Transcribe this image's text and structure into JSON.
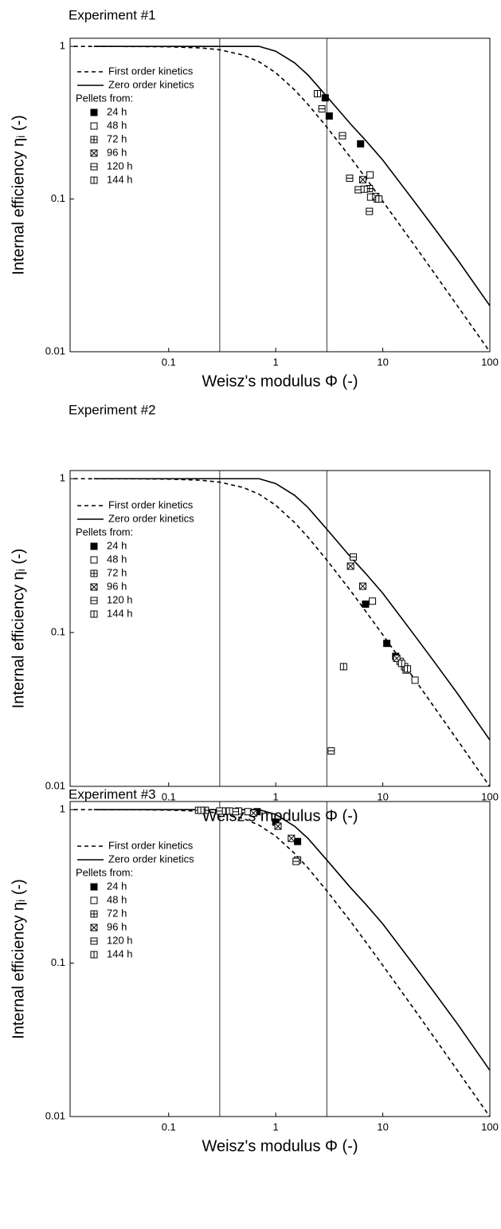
{
  "chart_data": [
    {
      "type": "scatter",
      "title": "Experiment #1",
      "xlabel": "Weisz's modulus Φ (-)",
      "ylabel": "Internal efficiency ηᵢ (-)",
      "xscale": "log",
      "yscale": "log",
      "xlim": [
        0.012,
        100
      ],
      "ylim": [
        0.01,
        1.13
      ],
      "xticks": [
        0.1,
        1,
        10,
        100
      ],
      "yticks": [
        0.01,
        0.1,
        1
      ],
      "vlines": [
        0.3,
        3
      ],
      "legend": "upper left",
      "legend_heading": "Pellets from:",
      "series": [
        {
          "name": "First order kinetics",
          "style": "dashed",
          "color": "#000000",
          "x": [
            0.013,
            0.05,
            0.1,
            0.2,
            0.3,
            0.5,
            0.7,
            1,
            1.5,
            2,
            3,
            5,
            7,
            10,
            20,
            30,
            50,
            100
          ],
          "values": [
            1.0,
            0.9985,
            0.994,
            0.977,
            0.95,
            0.876,
            0.792,
            0.672,
            0.519,
            0.417,
            0.296,
            0.187,
            0.136,
            0.0967,
            0.0492,
            0.033,
            0.0199,
            0.00997
          ]
        },
        {
          "name": "Zero order kinetics",
          "style": "solid",
          "color": "#000000",
          "x": [
            0.02,
            0.1,
            0.5,
            0.7,
            1,
            1.5,
            2,
            3,
            5,
            7,
            10,
            20,
            30,
            50,
            100
          ],
          "values": [
            1,
            1,
            1,
            1,
            0.93,
            0.78,
            0.65,
            0.47,
            0.31,
            0.24,
            0.18,
            0.095,
            0.065,
            0.04,
            0.02
          ]
        },
        {
          "name": "24 h",
          "marker": "filled",
          "color": "#000000",
          "x": [
            2.9,
            3.16,
            6.2
          ],
          "values": [
            0.46,
            0.35,
            0.23
          ]
        },
        {
          "name": "48 h",
          "marker": "open",
          "color": "#000000",
          "x": [
            7.6,
            7.7
          ],
          "values": [
            0.144,
            0.103
          ]
        },
        {
          "name": "72 h",
          "marker": "plus",
          "color": "#000000",
          "x": [
            7.5,
            8.9
          ],
          "values": [
            0.117,
            0.1
          ]
        },
        {
          "name": "96 h",
          "marker": "cross",
          "color": "#000000",
          "x": [
            6.5,
            8.6
          ],
          "values": [
            0.134,
            0.104
          ]
        },
        {
          "name": "120 h",
          "marker": "hline",
          "color": "#000000",
          "x": [
            2.7,
            4.2,
            4.9,
            5.9,
            7.5
          ],
          "values": [
            0.39,
            0.26,
            0.137,
            0.115,
            0.083
          ]
        },
        {
          "name": "144 h",
          "marker": "vline",
          "color": "#000000",
          "x": [
            2.45,
            9.2,
            6.7
          ],
          "values": [
            0.49,
            0.1,
            0.116
          ]
        }
      ]
    },
    {
      "type": "scatter",
      "title": "Experiment #2",
      "xlabel": "Weisz's modulus Φ (-)",
      "ylabel": "Internal efficiency ηᵢ (-)",
      "xscale": "log",
      "yscale": "log",
      "xlim": [
        0.012,
        100
      ],
      "ylim": [
        0.01,
        1.13
      ],
      "xticks": [
        0.1,
        1,
        10,
        100
      ],
      "yticks": [
        0.01,
        0.1,
        1
      ],
      "vlines": [
        0.3,
        3
      ],
      "legend": "upper left",
      "legend_heading": "Pellets from:",
      "series": [
        {
          "name": "First order kinetics",
          "style": "dashed",
          "color": "#000000",
          "x": [
            0.013,
            0.05,
            0.1,
            0.2,
            0.3,
            0.5,
            0.7,
            1,
            1.5,
            2,
            3,
            5,
            7,
            10,
            20,
            30,
            50,
            100
          ],
          "values": [
            1.0,
            0.9985,
            0.994,
            0.977,
            0.95,
            0.876,
            0.792,
            0.672,
            0.519,
            0.417,
            0.296,
            0.187,
            0.136,
            0.0967,
            0.0492,
            0.033,
            0.0199,
            0.00997
          ]
        },
        {
          "name": "Zero order kinetics",
          "style": "solid",
          "color": "#000000",
          "x": [
            0.02,
            0.1,
            0.5,
            0.7,
            1,
            1.5,
            2,
            3,
            5,
            7,
            10,
            20,
            30,
            50,
            100
          ],
          "values": [
            1,
            1,
            1,
            1,
            0.93,
            0.78,
            0.65,
            0.47,
            0.31,
            0.24,
            0.18,
            0.095,
            0.065,
            0.04,
            0.02
          ]
        },
        {
          "name": "24 h",
          "marker": "filled",
          "color": "#000000",
          "x": [
            6.9,
            10.9,
            13.2
          ],
          "values": [
            0.153,
            0.085,
            0.07
          ]
        },
        {
          "name": "48 h",
          "marker": "open",
          "color": "#000000",
          "x": [
            8,
            20
          ],
          "values": [
            0.16,
            0.049
          ]
        },
        {
          "name": "72 h",
          "marker": "plus",
          "color": "#000000",
          "x": [
            14.5,
            16
          ],
          "values": [
            0.065,
            0.06
          ]
        },
        {
          "name": "96 h",
          "marker": "cross",
          "color": "#000000",
          "x": [
            5,
            6.5,
            13.5
          ],
          "values": [
            0.27,
            0.2,
            0.068
          ]
        },
        {
          "name": "120 h",
          "marker": "hline",
          "color": "#000000",
          "x": [
            5.3,
            3.3,
            16.5
          ],
          "values": [
            0.31,
            0.017,
            0.057
          ]
        },
        {
          "name": "144 h",
          "marker": "vline",
          "color": "#000000",
          "x": [
            4.3,
            15,
            17
          ],
          "values": [
            0.06,
            0.063,
            0.058
          ]
        }
      ]
    },
    {
      "type": "scatter",
      "title": "Experiment #3",
      "xlabel": "Weisz's modulus Φ (-)",
      "ylabel": "Internal efficiency ηᵢ (-)",
      "xscale": "log",
      "yscale": "log",
      "xlim": [
        0.012,
        100
      ],
      "ylim": [
        0.01,
        1.13
      ],
      "xticks": [
        0.1,
        1,
        10,
        100
      ],
      "yticks": [
        0.01,
        0.1,
        1
      ],
      "vlines": [
        0.3,
        3
      ],
      "legend": "upper left",
      "legend_heading": "Pellets from:",
      "series": [
        {
          "name": "First order kinetics",
          "style": "dashed",
          "color": "#000000",
          "x": [
            0.013,
            0.05,
            0.1,
            0.2,
            0.3,
            0.5,
            0.7,
            1,
            1.5,
            2,
            3,
            5,
            7,
            10,
            20,
            30,
            50,
            100
          ],
          "values": [
            1.0,
            0.9985,
            0.994,
            0.977,
            0.95,
            0.876,
            0.792,
            0.672,
            0.519,
            0.417,
            0.296,
            0.187,
            0.136,
            0.0967,
            0.0492,
            0.033,
            0.0199,
            0.00997
          ]
        },
        {
          "name": "Zero order kinetics",
          "style": "solid",
          "color": "#000000",
          "x": [
            0.02,
            0.1,
            0.5,
            0.7,
            1,
            1.5,
            2,
            3,
            5,
            7,
            10,
            20,
            30,
            50,
            100
          ],
          "values": [
            1,
            1,
            1,
            1,
            0.93,
            0.78,
            0.65,
            0.47,
            0.31,
            0.24,
            0.18,
            0.095,
            0.065,
            0.04,
            0.02
          ]
        },
        {
          "name": "24 h",
          "marker": "filled",
          "color": "#000000",
          "x": [
            0.67,
            1.0,
            1.6
          ],
          "values": [
            0.97,
            0.83,
            0.62
          ]
        },
        {
          "name": "48 h",
          "marker": "open",
          "color": "#000000",
          "x": [
            0.45,
            0.55
          ],
          "values": [
            0.98,
            0.97
          ]
        },
        {
          "name": "72 h",
          "marker": "plus",
          "color": "#000000",
          "x": [
            0.22,
            1.6
          ],
          "values": [
            0.99,
            0.47
          ]
        },
        {
          "name": "96 h",
          "marker": "cross",
          "color": "#000000",
          "x": [
            0.62,
            1.05,
            1.4
          ],
          "values": [
            0.95,
            0.78,
            0.65
          ]
        },
        {
          "name": "120 h",
          "marker": "hline",
          "color": "#000000",
          "x": [
            0.19,
            0.3,
            0.42,
            1.55
          ],
          "values": [
            0.99,
            0.98,
            0.97,
            0.46
          ]
        },
        {
          "name": "144 h",
          "marker": "vline",
          "color": "#000000",
          "x": [
            0.2,
            0.34,
            0.37
          ],
          "values": [
            0.99,
            0.98,
            0.98
          ]
        }
      ]
    }
  ]
}
